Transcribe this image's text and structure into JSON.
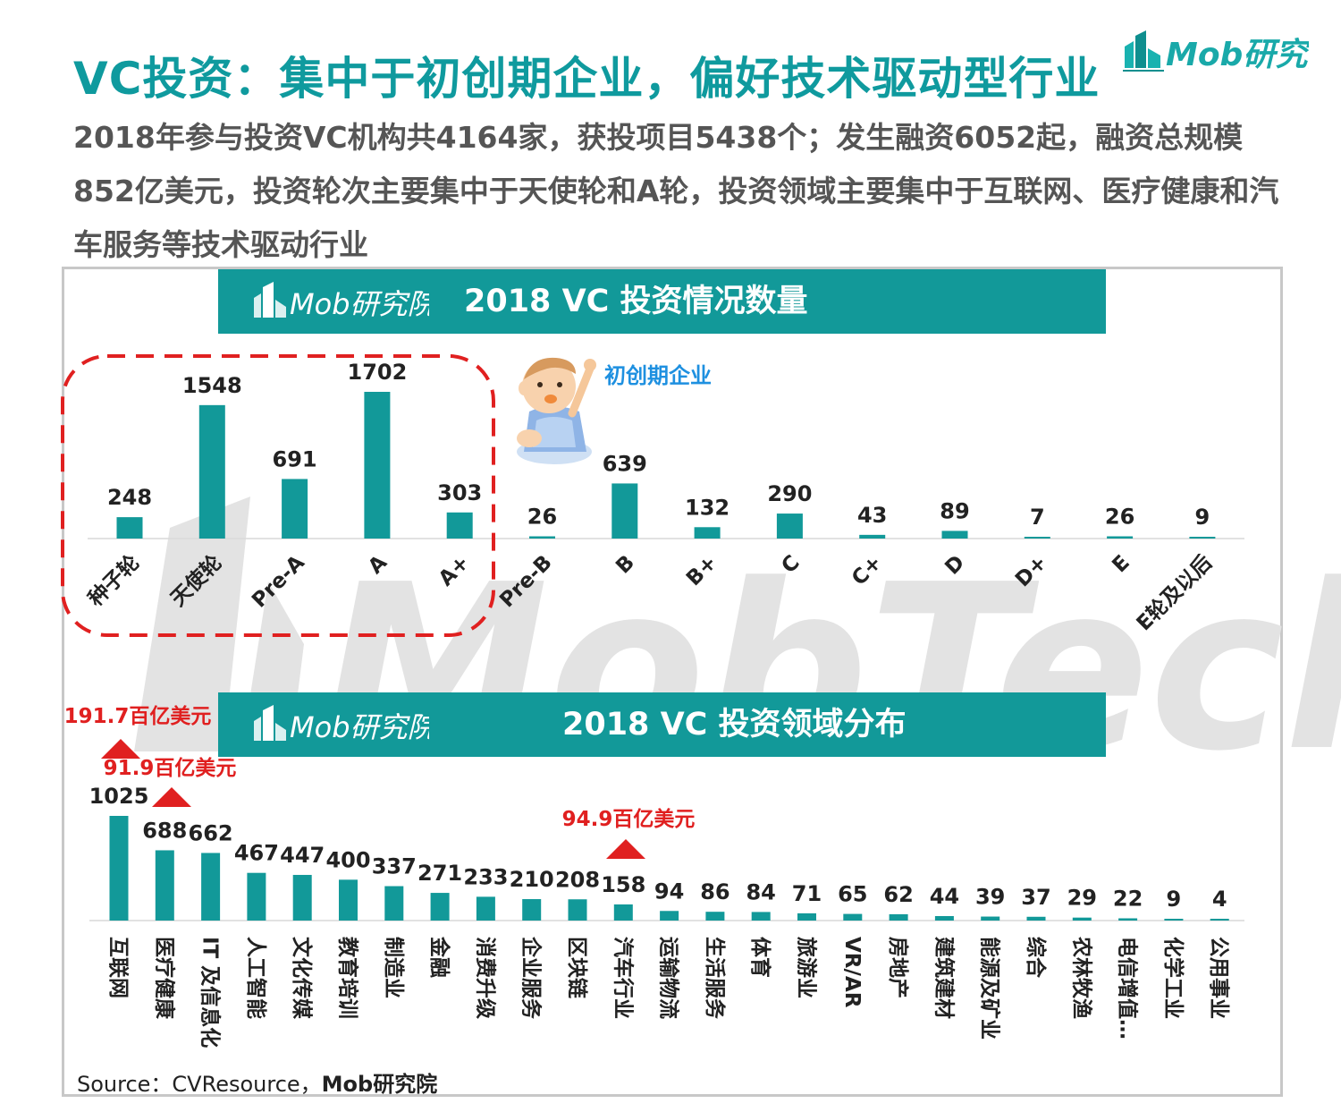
{
  "title": "VC投资：集中于初创期企业，偏好技术驱动型行业",
  "brand": "Mob研究院",
  "subtitle": "2018年参与投资VC机构共4164家，获投项目5438个；发生融资6052起，融资总规模852亿美元，投资轮次主要集中于天使轮和A轮，投资领域主要集中于互联网、医疗健康和汽车服务等技术驱动行业",
  "watermark": "MobTech",
  "colors": {
    "bar": "#129999",
    "highlight": "#e02020",
    "callout": "#1e90e0",
    "title": "#0f9a9e"
  },
  "source": {
    "prefix": "Source：CVResource，",
    "brand": "Mob研究院"
  },
  "chart_data": [
    {
      "type": "bar",
      "title": "2018 VC 投资情况数量",
      "categories": [
        "种子轮",
        "天使轮",
        "Pre-A",
        "A",
        "A+",
        "Pre-B",
        "B",
        "B+",
        "C",
        "C+",
        "D",
        "D+",
        "E",
        "E轮及以后"
      ],
      "values": [
        248,
        1548,
        691,
        1702,
        303,
        26,
        639,
        132,
        290,
        43,
        89,
        7,
        26,
        9
      ],
      "highlight": {
        "categories": [
          "种子轮",
          "天使轮",
          "Pre-A",
          "A",
          "A+"
        ],
        "label": "初创期企业"
      },
      "ylim": [
        0,
        1702
      ]
    },
    {
      "type": "bar",
      "title": "2018 VC 投资领域分布",
      "categories": [
        "互联网",
        "医疗健康",
        "IT 及信息化",
        "人工智能",
        "文化传媒",
        "教育培训",
        "制造业",
        "金融",
        "消费升级",
        "企业服务",
        "区块链",
        "汽车行业",
        "运输物流",
        "生活服务",
        "体育",
        "旅游业",
        "VR/AR",
        "房地产",
        "建筑建材",
        "能源及矿业",
        "综合",
        "农林牧渔",
        "电信增值…",
        "化学工业",
        "公用事业"
      ],
      "values": [
        1025,
        688,
        662,
        467,
        447,
        400,
        337,
        271,
        233,
        210,
        208,
        158,
        94,
        86,
        84,
        71,
        65,
        62,
        44,
        39,
        37,
        29,
        22,
        9,
        4
      ],
      "ylim": [
        0,
        1025
      ],
      "annotations": [
        {
          "category": "互联网",
          "label": "191.7百亿美元"
        },
        {
          "category": "医疗健康",
          "label": "91.9百亿美元"
        },
        {
          "category": "汽车行业",
          "label": "94.9百亿美元"
        }
      ]
    }
  ]
}
